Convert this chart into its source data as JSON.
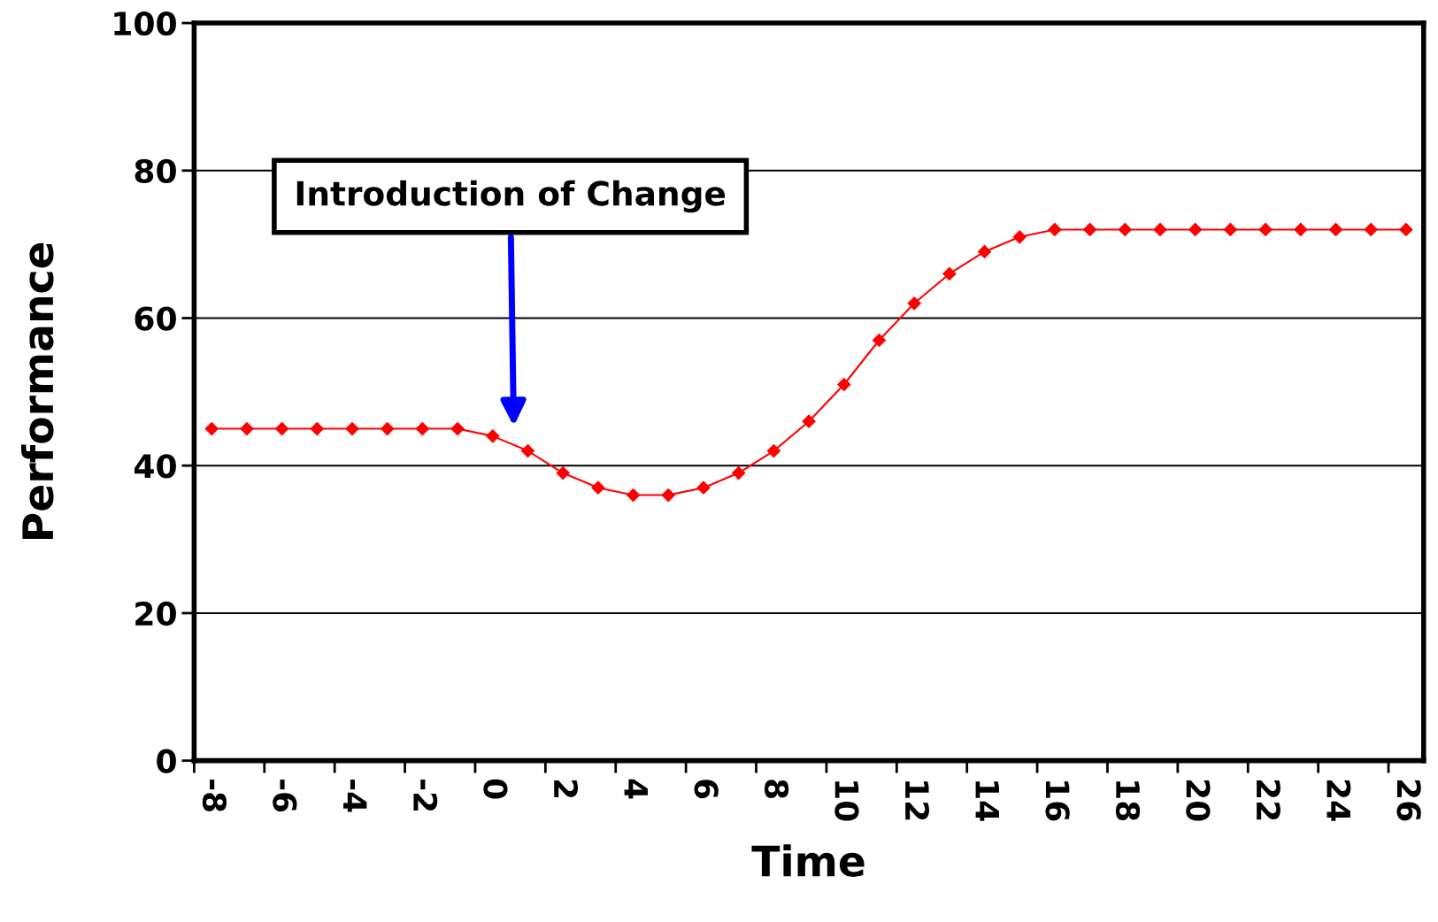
{
  "chart_data": {
    "type": "line",
    "xlabel": "Time",
    "ylabel": "Performance",
    "categories": [
      "-8",
      null,
      "-6",
      null,
      "-4",
      null,
      "-2",
      null,
      "0",
      null,
      "2",
      null,
      "4",
      null,
      "6",
      null,
      "8",
      null,
      "10",
      null,
      "12",
      null,
      "14",
      null,
      "16",
      null,
      "18",
      null,
      "20",
      null,
      "22",
      null,
      "24",
      null,
      "26"
    ],
    "series": [
      {
        "color": "#ff0000",
        "values": [
          45,
          45,
          45,
          45,
          45,
          45,
          45,
          45,
          44,
          42,
          39,
          37,
          36,
          36,
          37,
          39,
          42,
          46,
          51,
          57,
          62,
          66,
          69,
          71,
          72,
          72,
          72,
          72,
          72,
          72,
          72,
          72,
          72,
          72,
          72
        ]
      }
    ],
    "ylim": [
      0,
      100
    ],
    "yticks": [
      0,
      20,
      40,
      60,
      80,
      100
    ],
    "grid": "y",
    "marker": "diamond",
    "line_style": "solid",
    "annotations": [
      "Introduction of Change"
    ]
  }
}
